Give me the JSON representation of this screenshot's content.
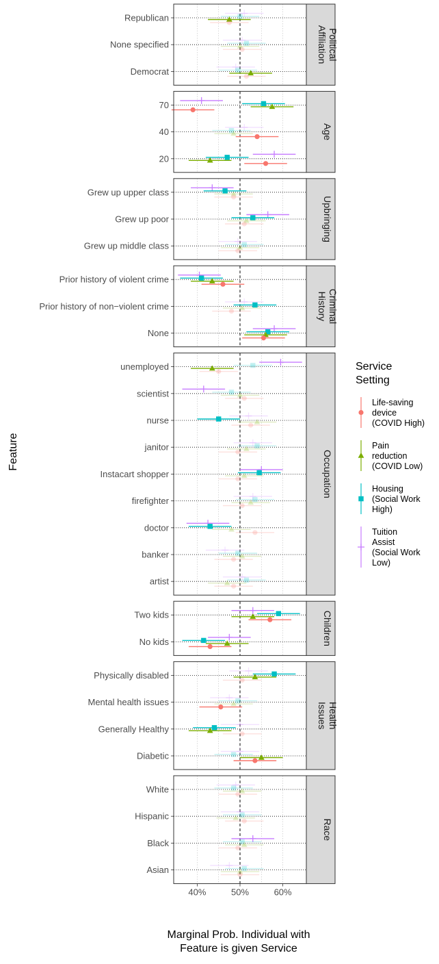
{
  "chart_data": {
    "type": "scatter",
    "xlabel": [
      "Marginal Prob. Individual with",
      "Feature is given Service"
    ],
    "ylabel": "Feature",
    "xlim": [
      34.5,
      65.5
    ],
    "xticks": [
      {
        "value": 40,
        "label": "40%"
      },
      {
        "value": 50,
        "label": "50%"
      },
      {
        "value": 60,
        "label": "60%"
      }
    ],
    "reference_line": 50,
    "legend": {
      "title": [
        "Service",
        "Setting"
      ],
      "entries": [
        {
          "key": "life",
          "lines": [
            "Life-saving",
            "device",
            "(COVID High)"
          ],
          "color": "#F8766D",
          "shape": "circle"
        },
        {
          "key": "pain",
          "lines": [
            "Pain",
            "reduction",
            "(COVID Low)"
          ],
          "color": "#7CAE00",
          "shape": "triangle"
        },
        {
          "key": "housing",
          "lines": [
            "Housing",
            "(Social Work",
            "High)"
          ],
          "color": "#00BFC4",
          "shape": "square"
        },
        {
          "key": "tuition",
          "lines": [
            "Tuition",
            "Assist",
            "(Social Work",
            "Low)"
          ],
          "color": "#C77CFF",
          "shape": "plus"
        }
      ]
    },
    "panels": [
      {
        "strip": [
          "Political",
          "Affiliation"
        ],
        "rows": [
          {
            "label": "Republican",
            "est": {
              "life": 47.5,
              "pain": 47.5,
              "housing": 50,
              "tuition": 51
            },
            "sig": [
              "pain"
            ]
          },
          {
            "label": "None specified",
            "est": {
              "life": 50.5,
              "pain": 50,
              "housing": 51.5,
              "tuition": 50.5
            },
            "sig": []
          },
          {
            "label": "Democrat",
            "est": {
              "life": 51.5,
              "pain": 52.5,
              "housing": 49.5,
              "tuition": 49
            },
            "sig": [
              "pain"
            ]
          }
        ]
      },
      {
        "strip": [
          "Age"
        ],
        "rows": [
          {
            "label": "70",
            "est": {
              "life": 39,
              "pain": 57.5,
              "housing": 55.5,
              "tuition": 41
            },
            "sig": [
              "life",
              "pain",
              "housing",
              "tuition"
            ]
          },
          {
            "label": "40",
            "est": {
              "life": 54,
              "pain": 48.5,
              "housing": 48,
              "tuition": 51
            },
            "sig": [
              "life"
            ]
          },
          {
            "label": "20",
            "est": {
              "life": 56,
              "pain": 43,
              "housing": 47,
              "tuition": 58
            },
            "sig": [
              "life",
              "pain",
              "housing",
              "tuition"
            ]
          }
        ]
      },
      {
        "strip": [
          "Upbringing"
        ],
        "rows": [
          {
            "label": "Grew up upper class",
            "est": {
              "life": 48.5,
              "pain": 48.5,
              "housing": 46.5,
              "tuition": 43.5
            },
            "sig": [
              "housing",
              "tuition"
            ]
          },
          {
            "label": "Grew up poor",
            "est": {
              "life": 51,
              "pain": 51.5,
              "housing": 53,
              "tuition": 56.5
            },
            "sig": [
              "housing",
              "tuition"
            ]
          },
          {
            "label": "Grew up middle class",
            "est": {
              "life": 49.5,
              "pain": 50,
              "housing": 51,
              "tuition": 49.5
            },
            "sig": []
          }
        ]
      },
      {
        "strip": [
          "Criminal",
          "History"
        ],
        "rows": [
          {
            "label": "Prior history of violent crime",
            "est": {
              "life": 46,
              "pain": 43.5,
              "housing": 41,
              "tuition": 40.5
            },
            "sig": [
              "life",
              "pain",
              "housing",
              "tuition"
            ]
          },
          {
            "label": "Prior history of non−violent crime",
            "est": {
              "life": 48,
              "pain": 50.5,
              "housing": 53.5,
              "tuition": 51
            },
            "sig": [
              "housing"
            ]
          },
          {
            "label": "None",
            "est": {
              "life": 55.5,
              "pain": 56,
              "housing": 56.5,
              "tuition": 58
            },
            "sig": [
              "life",
              "pain",
              "housing",
              "tuition"
            ]
          }
        ]
      },
      {
        "strip": [
          "Occupation"
        ],
        "rows": [
          {
            "label": "unemployed",
            "est": {
              "life": 45,
              "pain": 43.5,
              "housing": 53,
              "tuition": 59.5
            },
            "sig": [
              "pain",
              "tuition"
            ]
          },
          {
            "label": "scientist",
            "est": {
              "life": 51,
              "pain": 50,
              "housing": 48,
              "tuition": 41.5
            },
            "sig": [
              "tuition"
            ]
          },
          {
            "label": "nurse",
            "est": {
              "life": 52.5,
              "pain": 54,
              "housing": 45,
              "tuition": 52
            },
            "sig": [
              "housing"
            ]
          },
          {
            "label": "janitor",
            "est": {
              "life": 49.5,
              "pain": 51.5,
              "housing": 54,
              "tuition": 53
            },
            "sig": []
          },
          {
            "label": "Instacart shopper",
            "est": {
              "life": 49.5,
              "pain": 51,
              "housing": 54.5,
              "tuition": 55
            },
            "sig": [
              "housing",
              "tuition"
            ]
          },
          {
            "label": "firefighter",
            "est": {
              "life": 50.5,
              "pain": 52.5,
              "housing": 53.5,
              "tuition": 53
            },
            "sig": []
          },
          {
            "label": "doctor",
            "est": {
              "life": 53.5,
              "pain": 48,
              "housing": 43,
              "tuition": 42.5
            },
            "sig": [
              "housing",
              "tuition"
            ]
          },
          {
            "label": "banker",
            "est": {
              "life": 48.5,
              "pain": 50.5,
              "housing": 49.5,
              "tuition": 46.5
            },
            "sig": []
          },
          {
            "label": "artist",
            "est": {
              "life": 48.5,
              "pain": 47,
              "housing": 51.5,
              "tuition": 50.5
            },
            "sig": []
          }
        ]
      },
      {
        "strip": [
          "Children"
        ],
        "rows": [
          {
            "label": "Two kids",
            "est": {
              "life": 57,
              "pain": 53,
              "housing": 59,
              "tuition": 53
            },
            "sig": [
              "life",
              "pain",
              "housing",
              "tuition"
            ]
          },
          {
            "label": "No kids",
            "est": {
              "life": 43,
              "pain": 47,
              "housing": 41.5,
              "tuition": 47.5
            },
            "sig": [
              "life",
              "pain",
              "housing",
              "tuition"
            ]
          }
        ]
      },
      {
        "strip": [
          "Health",
          "Issues"
        ],
        "rows": [
          {
            "label": "Physically disabled",
            "est": {
              "life": 50.5,
              "pain": 53.5,
              "housing": 58,
              "tuition": 52
            },
            "sig": [
              "pain",
              "housing"
            ]
          },
          {
            "label": "Mental health issues",
            "est": {
              "life": 45.5,
              "pain": 48.5,
              "housing": 49.5,
              "tuition": 47.5
            },
            "sig": [
              "life"
            ]
          },
          {
            "label": "Generally Healthy",
            "est": {
              "life": 50.5,
              "pain": 43,
              "housing": 44,
              "tuition": 50
            },
            "sig": [
              "pain",
              "housing"
            ]
          },
          {
            "label": "Diabetic",
            "est": {
              "life": 53.5,
              "pain": 55,
              "housing": 48.5,
              "tuition": 50
            },
            "sig": [
              "life",
              "pain"
            ]
          }
        ]
      },
      {
        "strip": [
          "Race"
        ],
        "rows": [
          {
            "label": "White",
            "est": {
              "life": 49.5,
              "pain": 50.5,
              "housing": 48.5,
              "tuition": 49
            },
            "sig": []
          },
          {
            "label": "Hispanic",
            "est": {
              "life": 51,
              "pain": 49,
              "housing": 50.5,
              "tuition": 50
            },
            "sig": []
          },
          {
            "label": "Black",
            "est": {
              "life": 49.5,
              "pain": 51,
              "housing": 50.5,
              "tuition": 53
            },
            "sig": [
              "tuition"
            ]
          },
          {
            "label": "Asian",
            "est": {
              "life": 50,
              "pain": 50,
              "housing": 51,
              "tuition": 47.5
            },
            "sig": []
          }
        ]
      }
    ]
  }
}
